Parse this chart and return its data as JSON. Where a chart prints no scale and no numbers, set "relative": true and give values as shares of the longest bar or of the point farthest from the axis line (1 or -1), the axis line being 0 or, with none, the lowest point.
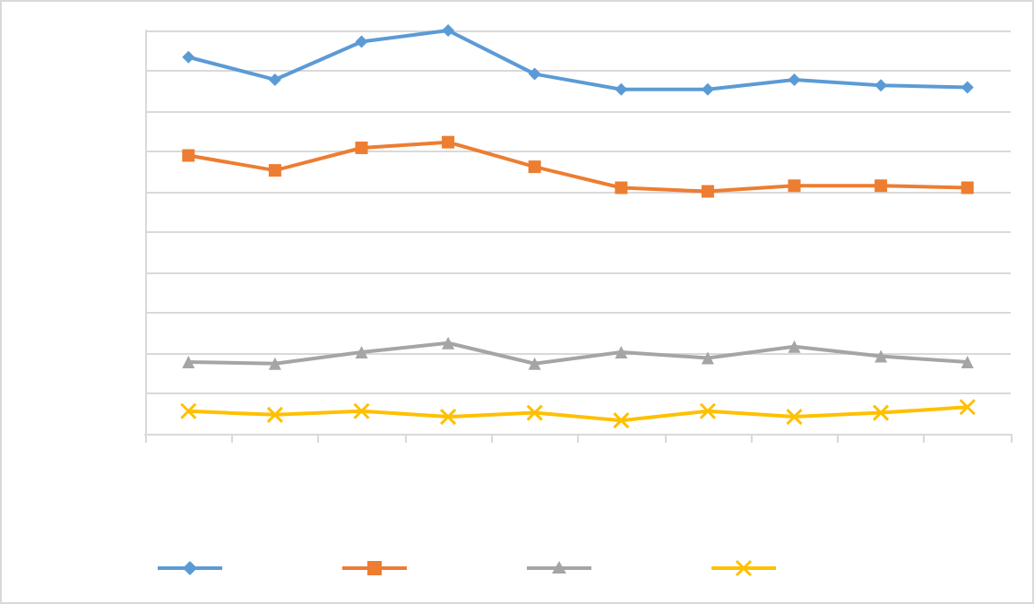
{
  "chart_data": {
    "type": "line",
    "relative": true,
    "grid": "y",
    "categories": [
      null,
      null,
      null,
      null,
      null,
      null,
      null,
      null,
      null,
      null
    ],
    "series": [
      {
        "color": "#5b9bd5",
        "marker": "diamond",
        "values": [
          0.934,
          0.878,
          0.972,
          1,
          0.892,
          0.854,
          0.854,
          0.878,
          0.864,
          0.859
        ]
      },
      {
        "color": "#ed7d31",
        "marker": "square",
        "values": [
          0.69,
          0.653,
          0.709,
          0.723,
          0.662,
          0.61,
          0.601,
          0.615,
          0.615,
          0.61
        ]
      },
      {
        "color": "#a5a5a5",
        "marker": "triangle",
        "values": [
          0.178,
          0.174,
          0.202,
          0.225,
          0.174,
          0.202,
          0.188,
          0.216,
          0.192,
          0.178
        ]
      },
      {
        "color": "#ffc000",
        "marker": "cross",
        "values": [
          0.056,
          0.047,
          0.056,
          0.042,
          0.052,
          0.033,
          0.056,
          0.042,
          0.052,
          0.066
        ]
      }
    ]
  }
}
